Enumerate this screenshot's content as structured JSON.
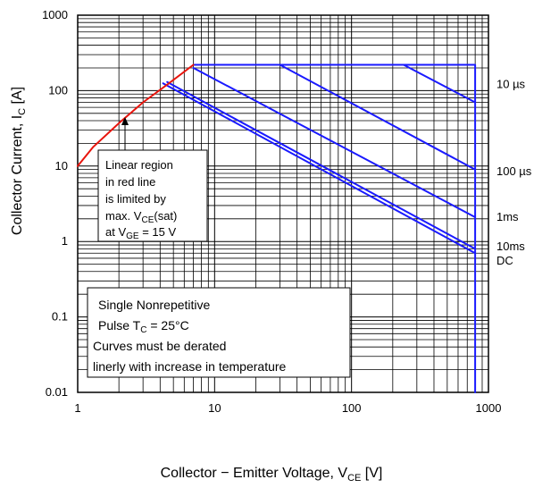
{
  "chart_data": {
    "type": "line",
    "xscale": "log",
    "yscale": "log",
    "xlim": [
      1,
      1000
    ],
    "ylim": [
      0.01,
      1000
    ],
    "xlabel_main": "Collector − Emitter Voltage, V",
    "xlabel_sub": "CE",
    "xlabel_unit": " [V]",
    "ylabel_main": "Collector Current, I",
    "ylabel_sub": "C",
    "ylabel_unit": " [A]",
    "x_ticks": [
      {
        "value": 1,
        "label": "1"
      },
      {
        "value": 10,
        "label": "10"
      },
      {
        "value": 100,
        "label": "100"
      },
      {
        "value": 1000,
        "label": "1000"
      }
    ],
    "y_ticks": [
      {
        "value": 0.01,
        "label": "0.01"
      },
      {
        "value": 0.1,
        "label": "0.1"
      },
      {
        "value": 1,
        "label": "1"
      },
      {
        "value": 10,
        "label": "10"
      },
      {
        "value": 100,
        "label": "100"
      },
      {
        "value": 1000,
        "label": "1000"
      }
    ],
    "grid": true,
    "colors": {
      "linear_region": "#e8140c",
      "soa": "#1a1aff",
      "grid": "#000000"
    },
    "series": [
      {
        "label": "10 µs",
        "color": "#1a1aff",
        "points": [
          [
            7,
            220
          ],
          [
            800,
            220
          ],
          [
            800,
            0.01
          ]
        ]
      },
      {
        "label": "10 µs",
        "color": "#1a1aff",
        "points": [
          [
            240,
            220
          ],
          [
            800,
            70
          ]
        ]
      },
      {
        "label": "100 µs",
        "color": "#1a1aff",
        "points": [
          [
            30,
            220
          ],
          [
            800,
            9
          ]
        ]
      },
      {
        "label": "1ms",
        "color": "#1a1aff",
        "points": [
          [
            7,
            200
          ],
          [
            800,
            2.1
          ]
        ]
      },
      {
        "label": "10ms",
        "color": "#1a1aff",
        "points": [
          [
            4.5,
            130
          ],
          [
            800,
            0.8
          ]
        ]
      },
      {
        "label": "DC",
        "color": "#1a1aff",
        "points": [
          [
            4.2,
            125
          ],
          [
            800,
            0.7
          ]
        ]
      },
      {
        "label": "Linear region",
        "color": "#e8140c",
        "points": [
          [
            1,
            10
          ],
          [
            1.3,
            18
          ],
          [
            2,
            37
          ],
          [
            3,
            70
          ],
          [
            4.5,
            120
          ],
          [
            7,
            220
          ]
        ]
      }
    ],
    "right_labels": [
      {
        "text": "10 µs",
        "y": 120
      },
      {
        "text": "100 µs",
        "y": 8.5
      },
      {
        "text": "1ms",
        "y": 2.1
      },
      {
        "text": "10ms",
        "y": 0.85
      },
      {
        "text": "DC",
        "y": 0.55
      }
    ],
    "annotation_linear": {
      "line1": "Linear region",
      "line2": "in red line",
      "line3": "is limited by",
      "line4_main": "max. V",
      "line4_sub": "CE",
      "line4_end": "(sat)",
      "line5_main": "at V",
      "line5_sub": "GE",
      "line5_end": " = 15 V"
    },
    "annotation_pulse": {
      "line1": "Single Nonrepetitive",
      "line2_main": "Pulse T",
      "line2_sub": "C",
      "line2_end": " = 25°C",
      "line3": "Curves must be derated",
      "line4": "linerly with increase in temperature"
    }
  }
}
